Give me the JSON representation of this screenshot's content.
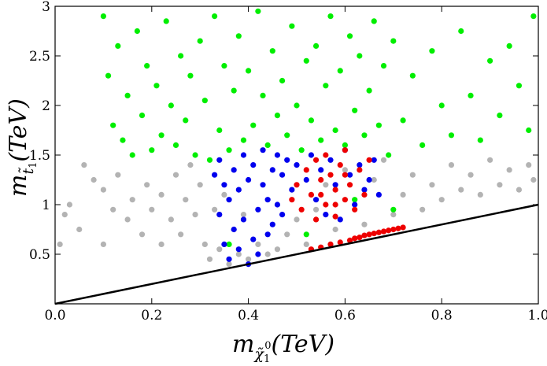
{
  "chart_data": {
    "type": "scatter",
    "title": "",
    "xlabel": {
      "base": "m",
      "sub": "χ̃",
      "sub_index": "1",
      "sup_index": "0",
      "unit": "(TeV)"
    },
    "ylabel": {
      "base": "m",
      "sub": "t̃",
      "sub_index": "1",
      "unit": "(TeV)"
    },
    "xlim": [
      0.0,
      1.0
    ],
    "ylim": [
      0.0,
      3.0
    ],
    "x_ticks": [
      "0.0",
      "0.2",
      "0.4",
      "0.6",
      "0.8",
      "1.0"
    ],
    "y_ticks": [
      "0.5",
      "1",
      "1.5",
      "2",
      "2.5",
      "3"
    ],
    "grid": false,
    "reference_line": {
      "description": "m_t1 = m_chi1",
      "points": [
        [
          0.0,
          0.0
        ],
        [
          1.0,
          1.0
        ]
      ],
      "color": "#000000"
    },
    "series": [
      {
        "color": "#b3b3b3",
        "values": [
          [
            0.01,
            0.6
          ],
          [
            0.02,
            0.9
          ],
          [
            0.03,
            1.0
          ],
          [
            0.05,
            0.75
          ],
          [
            0.06,
            1.4
          ],
          [
            0.08,
            1.25
          ],
          [
            0.1,
            0.6
          ],
          [
            0.1,
            1.15
          ],
          [
            0.12,
            0.95
          ],
          [
            0.13,
            1.3
          ],
          [
            0.15,
            0.85
          ],
          [
            0.16,
            1.05
          ],
          [
            0.18,
            0.7
          ],
          [
            0.19,
            1.2
          ],
          [
            0.2,
            0.95
          ],
          [
            0.22,
            0.6
          ],
          [
            0.22,
            1.1
          ],
          [
            0.24,
            0.85
          ],
          [
            0.25,
            1.3
          ],
          [
            0.26,
            0.7
          ],
          [
            0.27,
            1.05
          ],
          [
            0.28,
            1.4
          ],
          [
            0.29,
            0.9
          ],
          [
            0.3,
            1.2
          ],
          [
            0.31,
            0.6
          ],
          [
            0.32,
            0.45
          ],
          [
            0.33,
            0.95
          ],
          [
            0.34,
            0.55
          ],
          [
            0.35,
            1.1
          ],
          [
            0.36,
            0.4
          ],
          [
            0.37,
            0.75
          ],
          [
            0.38,
            0.5
          ],
          [
            0.39,
            0.9
          ],
          [
            0.4,
            0.45
          ],
          [
            0.42,
            0.6
          ],
          [
            0.44,
            0.5
          ],
          [
            0.46,
            0.55
          ],
          [
            0.48,
            0.7
          ],
          [
            0.5,
            0.85
          ],
          [
            0.52,
            0.6
          ],
          [
            0.54,
            0.95
          ],
          [
            0.56,
            1.2
          ],
          [
            0.58,
            0.75
          ],
          [
            0.6,
            1.35
          ],
          [
            0.62,
            1.0
          ],
          [
            0.64,
            0.8
          ],
          [
            0.66,
            1.25
          ],
          [
            0.68,
            1.45
          ],
          [
            0.7,
            0.9
          ],
          [
            0.72,
            1.1
          ],
          [
            0.74,
            1.3
          ],
          [
            0.76,
            0.95
          ],
          [
            0.78,
            1.2
          ],
          [
            0.8,
            1.05
          ],
          [
            0.82,
            1.4
          ],
          [
            0.84,
            1.15
          ],
          [
            0.86,
            1.3
          ],
          [
            0.88,
            1.1
          ],
          [
            0.9,
            1.45
          ],
          [
            0.92,
            1.2
          ],
          [
            0.94,
            1.35
          ],
          [
            0.96,
            1.15
          ],
          [
            0.98,
            1.4
          ],
          [
            0.99,
            1.25
          ]
        ]
      },
      {
        "color": "#00ee00",
        "values": [
          [
            0.1,
            2.9
          ],
          [
            0.11,
            2.3
          ],
          [
            0.12,
            1.8
          ],
          [
            0.13,
            2.6
          ],
          [
            0.14,
            1.65
          ],
          [
            0.15,
            2.1
          ],
          [
            0.16,
            1.5
          ],
          [
            0.17,
            2.75
          ],
          [
            0.18,
            1.9
          ],
          [
            0.19,
            2.4
          ],
          [
            0.2,
            1.55
          ],
          [
            0.21,
            2.2
          ],
          [
            0.22,
            1.7
          ],
          [
            0.23,
            2.85
          ],
          [
            0.24,
            2.0
          ],
          [
            0.25,
            1.6
          ],
          [
            0.26,
            2.5
          ],
          [
            0.27,
            1.85
          ],
          [
            0.28,
            2.3
          ],
          [
            0.29,
            1.5
          ],
          [
            0.3,
            2.65
          ],
          [
            0.31,
            2.05
          ],
          [
            0.32,
            1.45
          ],
          [
            0.33,
            2.9
          ],
          [
            0.34,
            1.75
          ],
          [
            0.35,
            2.4
          ],
          [
            0.36,
            1.55
          ],
          [
            0.37,
            2.15
          ],
          [
            0.38,
            2.7
          ],
          [
            0.39,
            1.65
          ],
          [
            0.4,
            2.35
          ],
          [
            0.41,
            1.8
          ],
          [
            0.42,
            2.95
          ],
          [
            0.43,
            2.1
          ],
          [
            0.44,
            1.6
          ],
          [
            0.45,
            2.55
          ],
          [
            0.46,
            1.9
          ],
          [
            0.47,
            2.25
          ],
          [
            0.48,
            1.7
          ],
          [
            0.49,
            2.8
          ],
          [
            0.5,
            2.0
          ],
          [
            0.51,
            1.55
          ],
          [
            0.52,
            2.45
          ],
          [
            0.53,
            1.85
          ],
          [
            0.54,
            2.6
          ],
          [
            0.55,
            1.65
          ],
          [
            0.56,
            2.2
          ],
          [
            0.57,
            2.9
          ],
          [
            0.58,
            1.75
          ],
          [
            0.59,
            2.35
          ],
          [
            0.6,
            1.6
          ],
          [
            0.61,
            2.7
          ],
          [
            0.62,
            1.95
          ],
          [
            0.63,
            2.5
          ],
          [
            0.64,
            1.7
          ],
          [
            0.65,
            2.15
          ],
          [
            0.66,
            2.85
          ],
          [
            0.67,
            1.8
          ],
          [
            0.68,
            2.4
          ],
          [
            0.69,
            1.5
          ],
          [
            0.7,
            2.65
          ],
          [
            0.72,
            1.85
          ],
          [
            0.74,
            2.3
          ],
          [
            0.76,
            1.6
          ],
          [
            0.78,
            2.55
          ],
          [
            0.8,
            2.0
          ],
          [
            0.82,
            1.7
          ],
          [
            0.84,
            2.75
          ],
          [
            0.86,
            2.1
          ],
          [
            0.88,
            1.65
          ],
          [
            0.9,
            2.45
          ],
          [
            0.92,
            1.9
          ],
          [
            0.94,
            2.6
          ],
          [
            0.96,
            2.2
          ],
          [
            0.98,
            1.75
          ],
          [
            0.99,
            2.9
          ],
          [
            0.52,
            0.7
          ],
          [
            0.36,
            0.6
          ],
          [
            0.7,
            0.95
          ],
          [
            0.62,
            1.05
          ]
        ]
      },
      {
        "color": "#0000ee",
        "values": [
          [
            0.33,
            1.3
          ],
          [
            0.34,
            0.9
          ],
          [
            0.34,
            1.45
          ],
          [
            0.35,
            0.6
          ],
          [
            0.35,
            1.2
          ],
          [
            0.36,
            0.45
          ],
          [
            0.36,
            1.05
          ],
          [
            0.37,
            1.35
          ],
          [
            0.37,
            0.75
          ],
          [
            0.38,
            0.55
          ],
          [
            0.38,
            1.15
          ],
          [
            0.39,
            1.5
          ],
          [
            0.39,
            0.85
          ],
          [
            0.4,
            0.4
          ],
          [
            0.4,
            1.25
          ],
          [
            0.41,
            0.65
          ],
          [
            0.41,
            1.4
          ],
          [
            0.42,
            0.95
          ],
          [
            0.42,
            0.5
          ],
          [
            0.43,
            1.2
          ],
          [
            0.43,
            1.55
          ],
          [
            0.44,
            0.7
          ],
          [
            0.44,
            1.05
          ],
          [
            0.45,
            1.35
          ],
          [
            0.45,
            0.8
          ],
          [
            0.46,
            1.5
          ],
          [
            0.46,
            1.0
          ],
          [
            0.47,
            1.3
          ],
          [
            0.47,
            0.9
          ],
          [
            0.48,
            1.45
          ],
          [
            0.49,
            1.15
          ],
          [
            0.5,
            1.4
          ],
          [
            0.52,
            1.25
          ],
          [
            0.53,
            1.5
          ],
          [
            0.54,
            1.05
          ],
          [
            0.55,
            1.35
          ],
          [
            0.56,
            0.9
          ],
          [
            0.57,
            1.45
          ],
          [
            0.58,
            1.2
          ],
          [
            0.59,
            0.85
          ],
          [
            0.6,
            1.55
          ],
          [
            0.61,
            1.3
          ],
          [
            0.62,
            1.0
          ],
          [
            0.63,
            1.4
          ],
          [
            0.64,
            1.15
          ],
          [
            0.65,
            1.25
          ],
          [
            0.66,
            1.45
          ],
          [
            0.67,
            1.1
          ]
        ]
      },
      {
        "color": "#ee0000",
        "values": [
          [
            0.49,
            1.05
          ],
          [
            0.5,
            1.2
          ],
          [
            0.51,
            0.95
          ],
          [
            0.52,
            1.35
          ],
          [
            0.53,
            1.1
          ],
          [
            0.53,
            0.55
          ],
          [
            0.54,
            1.45
          ],
          [
            0.54,
            0.85
          ],
          [
            0.55,
            1.25
          ],
          [
            0.55,
            0.57
          ],
          [
            0.56,
            1.0
          ],
          [
            0.56,
            1.5
          ],
          [
            0.57,
            0.6
          ],
          [
            0.57,
            1.3
          ],
          [
            0.58,
            1.15
          ],
          [
            0.58,
            0.88
          ],
          [
            0.59,
            1.4
          ],
          [
            0.59,
            0.62
          ],
          [
            0.6,
            1.05
          ],
          [
            0.6,
            1.55
          ],
          [
            0.61,
            0.64
          ],
          [
            0.61,
            1.2
          ],
          [
            0.62,
            0.95
          ],
          [
            0.62,
            0.66
          ],
          [
            0.63,
            1.35
          ],
          [
            0.63,
            0.67
          ],
          [
            0.64,
            1.1
          ],
          [
            0.64,
            0.69
          ],
          [
            0.65,
            0.7
          ],
          [
            0.65,
            1.45
          ],
          [
            0.66,
            0.71
          ],
          [
            0.67,
            0.72
          ],
          [
            0.68,
            0.73
          ],
          [
            0.69,
            0.74
          ],
          [
            0.7,
            0.75
          ],
          [
            0.71,
            0.76
          ],
          [
            0.72,
            0.77
          ],
          [
            0.58,
            1.0
          ],
          [
            0.6,
            1.3
          ],
          [
            0.55,
            1.1
          ]
        ]
      }
    ]
  }
}
